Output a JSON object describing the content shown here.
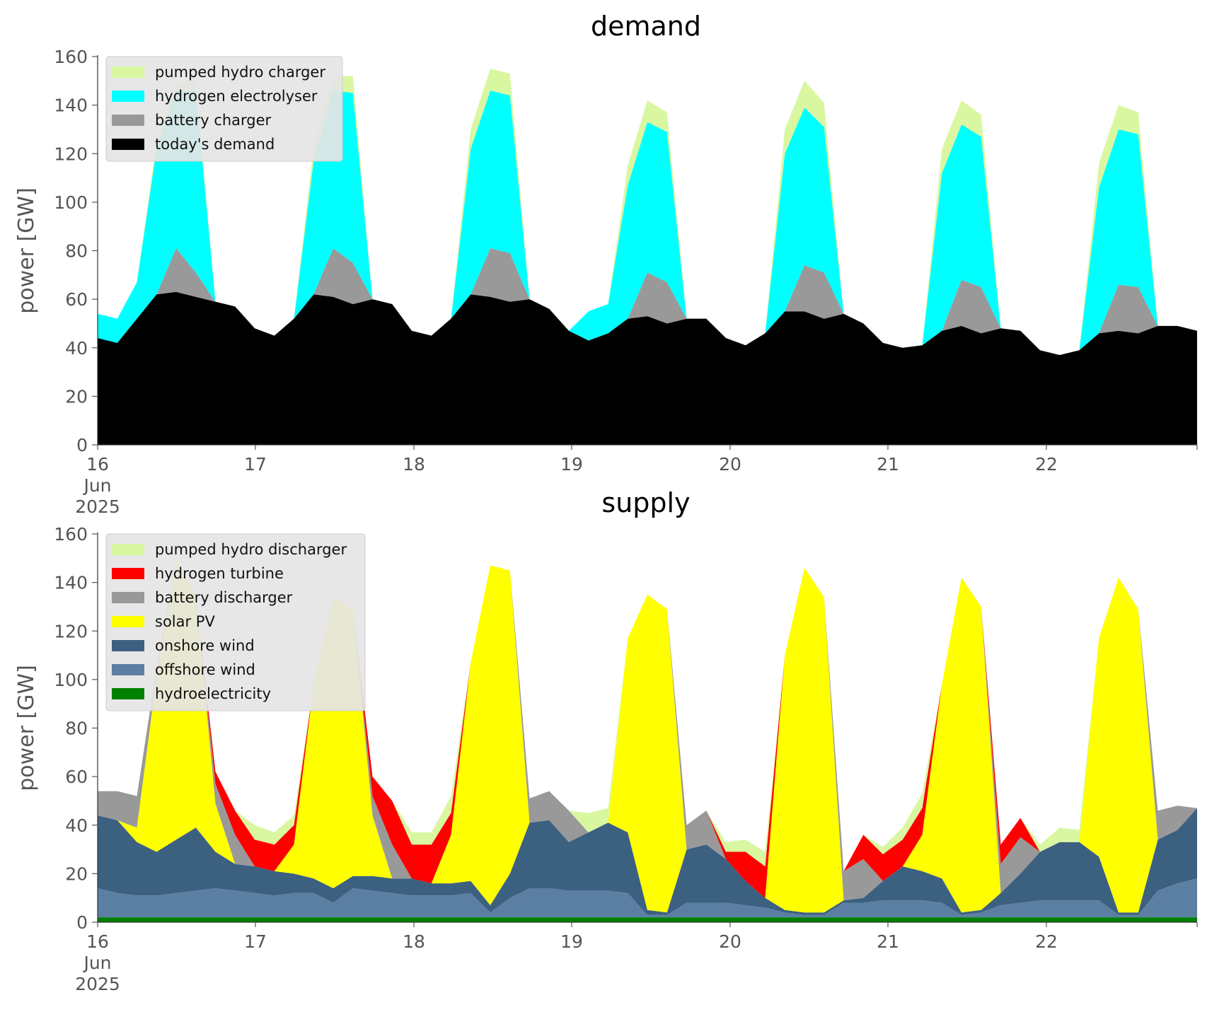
{
  "chart_data": [
    {
      "type": "area",
      "stacked": true,
      "title": "demand",
      "xlabel": "",
      "ylabel": "power [GW]",
      "ylim": [
        0,
        160
      ],
      "yticks": [
        0,
        20,
        40,
        60,
        80,
        100,
        120,
        140,
        160
      ],
      "x_ticks": [
        {
          "label": "16",
          "sub": [
            "Jun",
            "2025"
          ]
        },
        {
          "label": "17"
        },
        {
          "label": "18"
        },
        {
          "label": "19"
        },
        {
          "label": "20"
        },
        {
          "label": "21"
        },
        {
          "label": "22"
        }
      ],
      "x": [
        "16 00:00",
        "16 03:00",
        "16 06:00",
        "16 09:00",
        "16 12:00",
        "16 15:00",
        "16 18:00",
        "16 21:00",
        "17 00:00",
        "17 03:00",
        "17 06:00",
        "17 09:00",
        "17 12:00",
        "17 15:00",
        "17 18:00",
        "17 21:00",
        "18 00:00",
        "18 03:00",
        "18 06:00",
        "18 09:00",
        "18 12:00",
        "18 15:00",
        "18 18:00",
        "18 21:00",
        "19 00:00",
        "19 03:00",
        "19 06:00",
        "19 09:00",
        "19 12:00",
        "19 15:00",
        "19 18:00",
        "19 21:00",
        "20 00:00",
        "20 03:00",
        "20 06:00",
        "20 09:00",
        "20 12:00",
        "20 15:00",
        "20 18:00",
        "20 21:00",
        "21 00:00",
        "21 03:00",
        "21 06:00",
        "21 09:00",
        "21 12:00",
        "21 15:00",
        "21 18:00",
        "21 21:00",
        "22 00:00",
        "22 03:00",
        "22 06:00",
        "22 09:00",
        "22 12:00",
        "22 15:00",
        "22 18:00",
        "22 21:00",
        "22 23:00"
      ],
      "legend_position": "top-left",
      "grid": false,
      "series": [
        {
          "name": "today's demand",
          "color": "#000000",
          "values": [
            44,
            42,
            52,
            62,
            63,
            61,
            59,
            57,
            48,
            45,
            52,
            62,
            61,
            58,
            60,
            58,
            47,
            45,
            52,
            62,
            61,
            59,
            60,
            56,
            47,
            43,
            46,
            52,
            53,
            50,
            52,
            52,
            44,
            41,
            46,
            55,
            55,
            52,
            54,
            50,
            42,
            40,
            41,
            47,
            49,
            46,
            48,
            47,
            39,
            37,
            39,
            46,
            47,
            46,
            49,
            49,
            47
          ]
        },
        {
          "name": "battery charger",
          "color": "#999999",
          "values": [
            0,
            0,
            0,
            0,
            18,
            10,
            0,
            0,
            0,
            0,
            0,
            0,
            20,
            17,
            0,
            0,
            0,
            0,
            0,
            0,
            20,
            20,
            0,
            0,
            0,
            0,
            0,
            0,
            18,
            17,
            0,
            0,
            0,
            0,
            0,
            0,
            19,
            19,
            0,
            0,
            0,
            0,
            0,
            0,
            19,
            19,
            0,
            0,
            0,
            0,
            0,
            0,
            19,
            19,
            0,
            0,
            0
          ]
        },
        {
          "name": "hydrogen electrolyser",
          "color": "#00ffff",
          "values": [
            10,
            10,
            15,
            60,
            65,
            75,
            0,
            0,
            0,
            0,
            0,
            55,
            65,
            70,
            0,
            0,
            0,
            0,
            0,
            60,
            65,
            65,
            0,
            0,
            0,
            12,
            12,
            55,
            62,
            62,
            0,
            0,
            0,
            0,
            0,
            65,
            65,
            60,
            0,
            0,
            0,
            0,
            0,
            65,
            64,
            62,
            0,
            0,
            0,
            0,
            0,
            60,
            64,
            63,
            0,
            0,
            0
          ]
        },
        {
          "name": "pumped hydro charger",
          "color": "#d9f7a1",
          "values": [
            0,
            0,
            0,
            3,
            3,
            4,
            0,
            0,
            0,
            0,
            0,
            6,
            6,
            7,
            0,
            0,
            0,
            0,
            0,
            8,
            9,
            9,
            0,
            0,
            0,
            0,
            0,
            8,
            9,
            8,
            0,
            0,
            0,
            0,
            0,
            10,
            11,
            10,
            0,
            0,
            0,
            0,
            0,
            10,
            10,
            9,
            0,
            0,
            0,
            0,
            0,
            10,
            10,
            9,
            0,
            0,
            0
          ]
        }
      ],
      "legend_order": [
        "pumped hydro charger",
        "hydrogen electrolyser",
        "battery charger",
        "today's demand"
      ]
    },
    {
      "type": "area",
      "stacked": true,
      "title": "supply",
      "xlabel": "",
      "ylabel": "power [GW]",
      "ylim": [
        0,
        160
      ],
      "yticks": [
        0,
        20,
        40,
        60,
        80,
        100,
        120,
        140,
        160
      ],
      "x_ticks": [
        {
          "label": "16",
          "sub": [
            "Jun",
            "2025"
          ]
        },
        {
          "label": "17"
        },
        {
          "label": "18"
        },
        {
          "label": "19"
        },
        {
          "label": "20"
        },
        {
          "label": "21"
        },
        {
          "label": "22"
        }
      ],
      "x": [
        "16 00:00",
        "16 03:00",
        "16 06:00",
        "16 09:00",
        "16 12:00",
        "16 15:00",
        "16 18:00",
        "16 21:00",
        "17 00:00",
        "17 03:00",
        "17 06:00",
        "17 09:00",
        "17 12:00",
        "17 15:00",
        "17 18:00",
        "17 21:00",
        "18 00:00",
        "18 03:00",
        "18 06:00",
        "18 09:00",
        "18 12:00",
        "18 15:00",
        "18 18:00",
        "18 21:00",
        "19 00:00",
        "19 03:00",
        "19 06:00",
        "19 09:00",
        "19 12:00",
        "19 15:00",
        "19 18:00",
        "19 21:00",
        "20 00:00",
        "20 03:00",
        "20 06:00",
        "20 09:00",
        "20 12:00",
        "20 15:00",
        "20 18:00",
        "20 21:00",
        "21 00:00",
        "21 03:00",
        "21 06:00",
        "21 09:00",
        "21 12:00",
        "21 15:00",
        "21 18:00",
        "21 21:00",
        "22 00:00",
        "22 03:00",
        "22 06:00",
        "22 09:00",
        "22 12:00",
        "22 15:00",
        "22 18:00",
        "22 21:00",
        "22 23:00"
      ],
      "legend_position": "top-left",
      "grid": false,
      "series": [
        {
          "name": "hydroelectricity",
          "color": "#008000",
          "values": [
            2,
            2,
            2,
            2,
            2,
            2,
            2,
            2,
            2,
            2,
            2,
            2,
            2,
            2,
            2,
            2,
            2,
            2,
            2,
            2,
            2,
            2,
            2,
            2,
            2,
            2,
            2,
            2,
            2,
            2,
            2,
            2,
            2,
            2,
            2,
            2,
            2,
            2,
            2,
            2,
            2,
            2,
            2,
            2,
            2,
            2,
            2,
            2,
            2,
            2,
            2,
            2,
            2,
            2,
            2,
            2,
            2
          ]
        },
        {
          "name": "offshore wind",
          "color": "#5b7fa3",
          "values": [
            12,
            10,
            9,
            9,
            10,
            11,
            12,
            11,
            10,
            9,
            10,
            10,
            6,
            12,
            11,
            10,
            9,
            9,
            9,
            10,
            2,
            8,
            12,
            12,
            11,
            11,
            11,
            10,
            1,
            1,
            6,
            6,
            6,
            5,
            4,
            2,
            1,
            1,
            6,
            6,
            7,
            7,
            7,
            6,
            1,
            2,
            5,
            6,
            7,
            7,
            7,
            7,
            1,
            1,
            11,
            14,
            16
          ]
        },
        {
          "name": "onshore wind",
          "color": "#3c6080",
          "values": [
            30,
            30,
            22,
            18,
            22,
            26,
            15,
            11,
            11,
            10,
            8,
            6,
            6,
            5,
            6,
            6,
            7,
            5,
            5,
            5,
            3,
            10,
            27,
            28,
            20,
            24,
            28,
            25,
            2,
            1,
            22,
            24,
            18,
            10,
            4,
            1,
            1,
            1,
            1,
            2,
            8,
            14,
            12,
            10,
            1,
            1,
            5,
            12,
            20,
            24,
            24,
            18,
            1,
            1,
            21,
            22,
            29
          ]
        },
        {
          "name": "solar PV",
          "color": "#ffff00",
          "values": [
            0,
            0,
            6,
            72,
            115,
            95,
            20,
            0,
            0,
            0,
            12,
            80,
            120,
            110,
            25,
            0,
            0,
            0,
            20,
            90,
            140,
            125,
            0,
            0,
            0,
            0,
            0,
            80,
            130,
            125,
            0,
            0,
            0,
            0,
            0,
            105,
            142,
            130,
            0,
            0,
            0,
            0,
            15,
            80,
            138,
            125,
            0,
            0,
            0,
            0,
            0,
            90,
            138,
            125,
            0,
            0,
            0
          ]
        },
        {
          "name": "battery discharger",
          "color": "#999999",
          "values": [
            10,
            12,
            13,
            4,
            0,
            0,
            8,
            12,
            0,
            0,
            0,
            0,
            0,
            0,
            8,
            14,
            0,
            0,
            0,
            0,
            0,
            0,
            10,
            12,
            13,
            0,
            0,
            0,
            0,
            0,
            10,
            14,
            0,
            0,
            0,
            0,
            0,
            0,
            12,
            16,
            0,
            0,
            0,
            0,
            0,
            0,
            12,
            15,
            0,
            0,
            0,
            0,
            0,
            0,
            12,
            10,
            0
          ]
        },
        {
          "name": "hydrogen turbine",
          "color": "#ff0000",
          "values": [
            0,
            0,
            0,
            0,
            0,
            0,
            5,
            10,
            11,
            11,
            8,
            0,
            0,
            0,
            8,
            18,
            14,
            16,
            9,
            0,
            0,
            0,
            0,
            0,
            0,
            0,
            0,
            0,
            0,
            0,
            0,
            0,
            3,
            12,
            13,
            0,
            0,
            0,
            0,
            10,
            11,
            11,
            11,
            0,
            0,
            0,
            8,
            8,
            0,
            0,
            0,
            0,
            0,
            0,
            0,
            0,
            0
          ]
        },
        {
          "name": "pumped hydro discharger",
          "color": "#d9f7a1",
          "values": [
            0,
            0,
            0,
            0,
            0,
            0,
            0,
            0,
            6,
            5,
            4,
            0,
            0,
            0,
            0,
            0,
            5,
            5,
            7,
            0,
            0,
            0,
            0,
            0,
            0,
            8,
            6,
            0,
            0,
            0,
            0,
            0,
            4,
            5,
            6,
            0,
            0,
            0,
            0,
            0,
            3,
            5,
            6,
            0,
            0,
            0,
            0,
            0,
            3,
            6,
            5,
            0,
            0,
            0,
            0,
            0,
            0
          ]
        }
      ],
      "legend_order": [
        "pumped hydro discharger",
        "hydrogen turbine",
        "battery discharger",
        "solar PV",
        "onshore wind",
        "offshore wind",
        "hydroelectricity"
      ]
    }
  ]
}
